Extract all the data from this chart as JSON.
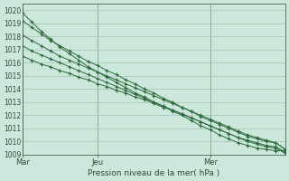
{
  "background_color": "#cce8dc",
  "grid_color": "#aabfb5",
  "line_color": "#2d6b3a",
  "marker": "+",
  "xlabel": "Pression niveau de la mer( hPa )",
  "ylim": [
    1009,
    1020.5
  ],
  "yticks": [
    1009,
    1010,
    1011,
    1012,
    1013,
    1014,
    1015,
    1016,
    1017,
    1018,
    1019,
    1020
  ],
  "xtick_labels": [
    "Mar",
    "Jeu",
    "Mer"
  ],
  "xtick_positions": [
    0,
    0.286,
    0.714
  ],
  "vline_positions": [
    0,
    0.286,
    0.714
  ],
  "series": [
    [
      1019.8,
      1019.1,
      1018.4,
      1017.8,
      1017.2,
      1016.7,
      1016.2,
      1015.7,
      1015.3,
      1014.9,
      1014.5,
      1014.1,
      1013.7,
      1013.4,
      1013.0,
      1012.7,
      1012.3,
      1012.0,
      1011.6,
      1011.2,
      1010.9,
      1010.5,
      1010.2,
      1009.9,
      1009.7,
      1009.5,
      1009.4,
      1009.3,
      1009.3
    ],
    [
      1019.2,
      1018.7,
      1018.2,
      1017.7,
      1017.3,
      1016.9,
      1016.5,
      1016.1,
      1015.8,
      1015.4,
      1015.1,
      1014.7,
      1014.4,
      1014.0,
      1013.7,
      1013.3,
      1013.0,
      1012.6,
      1012.3,
      1011.9,
      1011.6,
      1011.3,
      1011.0,
      1010.7,
      1010.4,
      1010.2,
      1010.0,
      1009.9,
      1009.4
    ],
    [
      1018.1,
      1017.7,
      1017.3,
      1016.9,
      1016.5,
      1016.2,
      1015.9,
      1015.6,
      1015.3,
      1015.0,
      1014.7,
      1014.4,
      1014.1,
      1013.8,
      1013.5,
      1013.2,
      1012.9,
      1012.6,
      1012.3,
      1012.0,
      1011.7,
      1011.4,
      1011.1,
      1010.8,
      1010.5,
      1010.3,
      1010.1,
      1009.9,
      1009.4
    ],
    [
      1017.3,
      1016.9,
      1016.6,
      1016.3,
      1016.0,
      1015.7,
      1015.4,
      1015.1,
      1014.8,
      1014.5,
      1014.2,
      1013.9,
      1013.6,
      1013.3,
      1013.0,
      1012.7,
      1012.4,
      1012.1,
      1011.8,
      1011.5,
      1011.2,
      1010.9,
      1010.6,
      1010.3,
      1010.1,
      1009.9,
      1009.7,
      1009.6,
      1009.2
    ],
    [
      1016.5,
      1016.2,
      1015.9,
      1015.7,
      1015.4,
      1015.2,
      1014.9,
      1014.7,
      1014.4,
      1014.2,
      1013.9,
      1013.7,
      1013.4,
      1013.2,
      1012.9,
      1012.6,
      1012.4,
      1012.1,
      1011.8,
      1011.5,
      1011.2,
      1010.9,
      1010.6,
      1010.3,
      1010.0,
      1009.8,
      1009.6,
      1009.5,
      1009.1
    ]
  ]
}
